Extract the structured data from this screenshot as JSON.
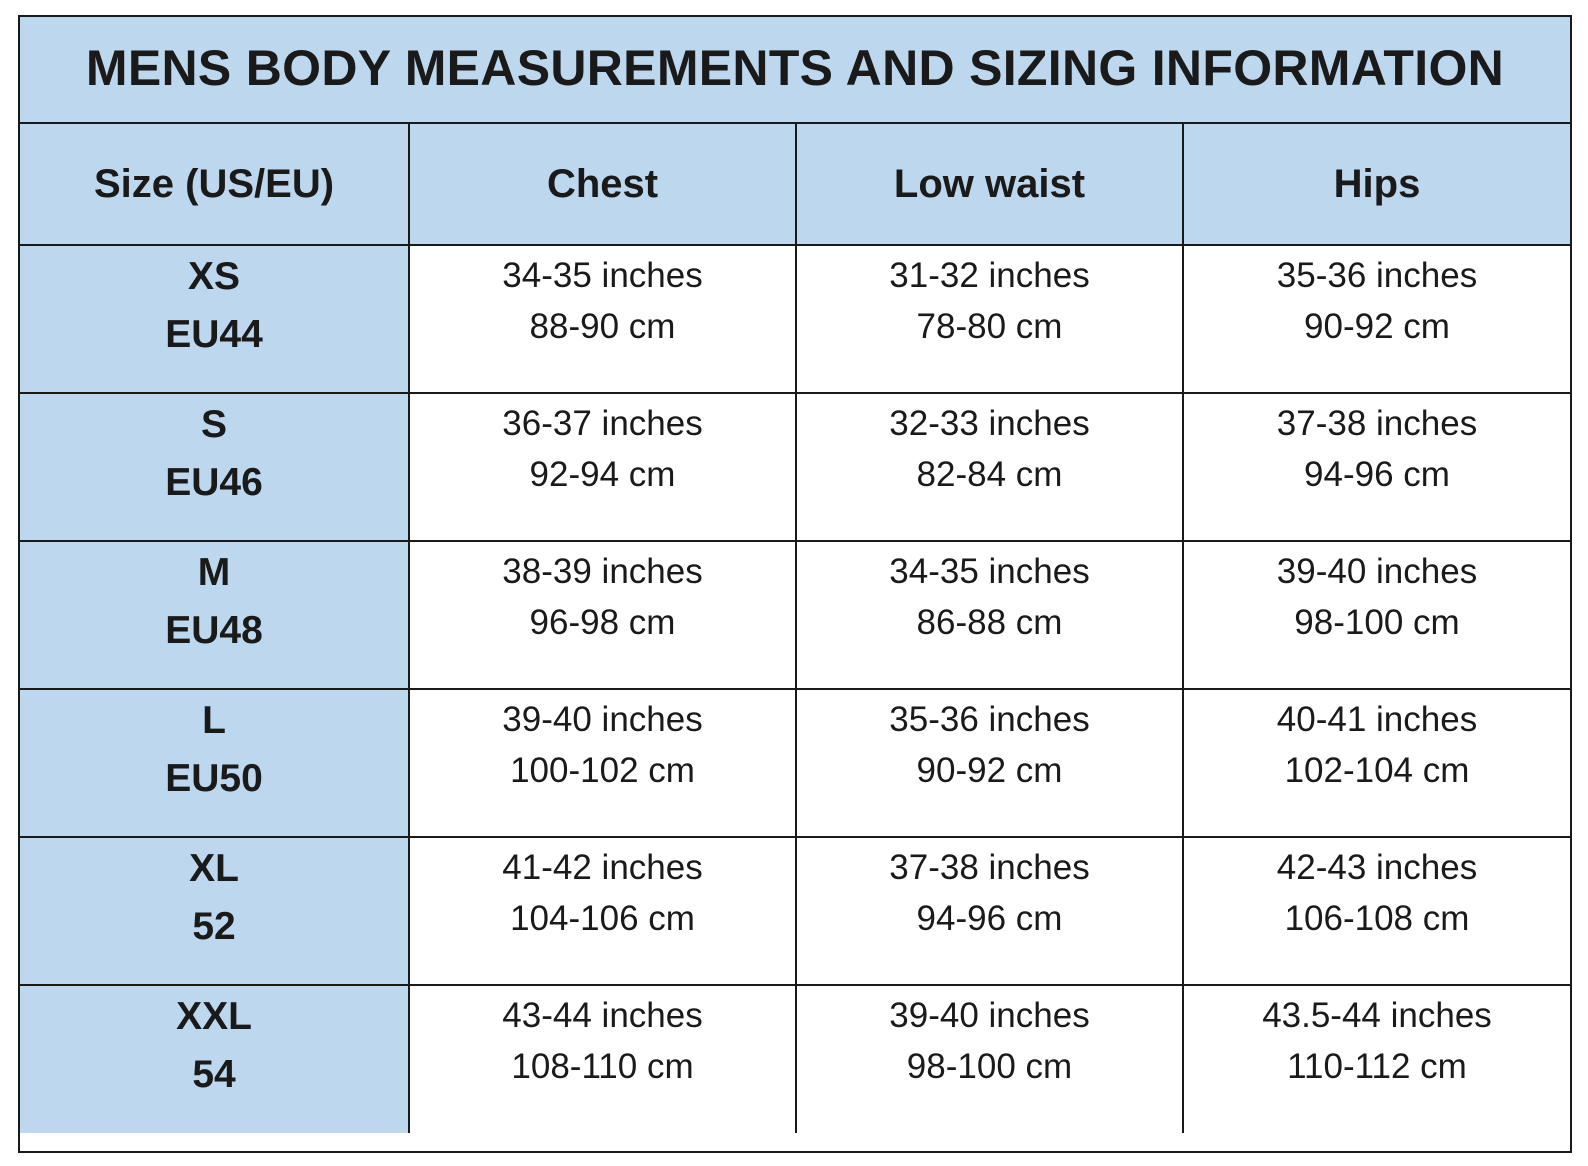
{
  "title": "MENS BODY MEASUREMENTS AND SIZING INFORMATION",
  "columns": [
    "Size (US/EU)",
    "Chest",
    "Low waist",
    "Hips"
  ],
  "colors": {
    "header_fill": "#bdd7ee",
    "border": "#1a1a1a",
    "cell_fill": "#ffffff"
  },
  "rows": [
    {
      "size": "XS",
      "eu": "EU44",
      "chest": {
        "in": "34-35 inches",
        "cm": "88-90 cm"
      },
      "low_waist": {
        "in": "31-32 inches",
        "cm": "78-80 cm"
      },
      "hips": {
        "in": "35-36 inches",
        "cm": "90-92 cm"
      }
    },
    {
      "size": "S",
      "eu": "EU46",
      "chest": {
        "in": "36-37 inches",
        "cm": "92-94 cm"
      },
      "low_waist": {
        "in": "32-33 inches",
        "cm": "82-84 cm"
      },
      "hips": {
        "in": "37-38 inches",
        "cm": "94-96 cm"
      }
    },
    {
      "size": "M",
      "eu": "EU48",
      "chest": {
        "in": "38-39 inches",
        "cm": "96-98 cm"
      },
      "low_waist": {
        "in": "34-35 inches",
        "cm": "86-88 cm"
      },
      "hips": {
        "in": "39-40 inches",
        "cm": "98-100 cm"
      }
    },
    {
      "size": "L",
      "eu": "EU50",
      "chest": {
        "in": "39-40 inches",
        "cm": "100-102 cm"
      },
      "low_waist": {
        "in": "35-36 inches",
        "cm": "90-92 cm"
      },
      "hips": {
        "in": "40-41 inches",
        "cm": "102-104 cm"
      }
    },
    {
      "size": "XL",
      "eu": "52",
      "chest": {
        "in": "41-42 inches",
        "cm": "104-106 cm"
      },
      "low_waist": {
        "in": "37-38 inches",
        "cm": "94-96 cm"
      },
      "hips": {
        "in": "42-43 inches",
        "cm": "106-108 cm"
      }
    },
    {
      "size": "XXL",
      "eu": "54",
      "chest": {
        "in": "43-44 inches",
        "cm": "108-110 cm"
      },
      "low_waist": {
        "in": "39-40 inches",
        "cm": "98-100 cm"
      },
      "hips": {
        "in": "43.5-44 inches",
        "cm": "110-112 cm"
      }
    }
  ]
}
